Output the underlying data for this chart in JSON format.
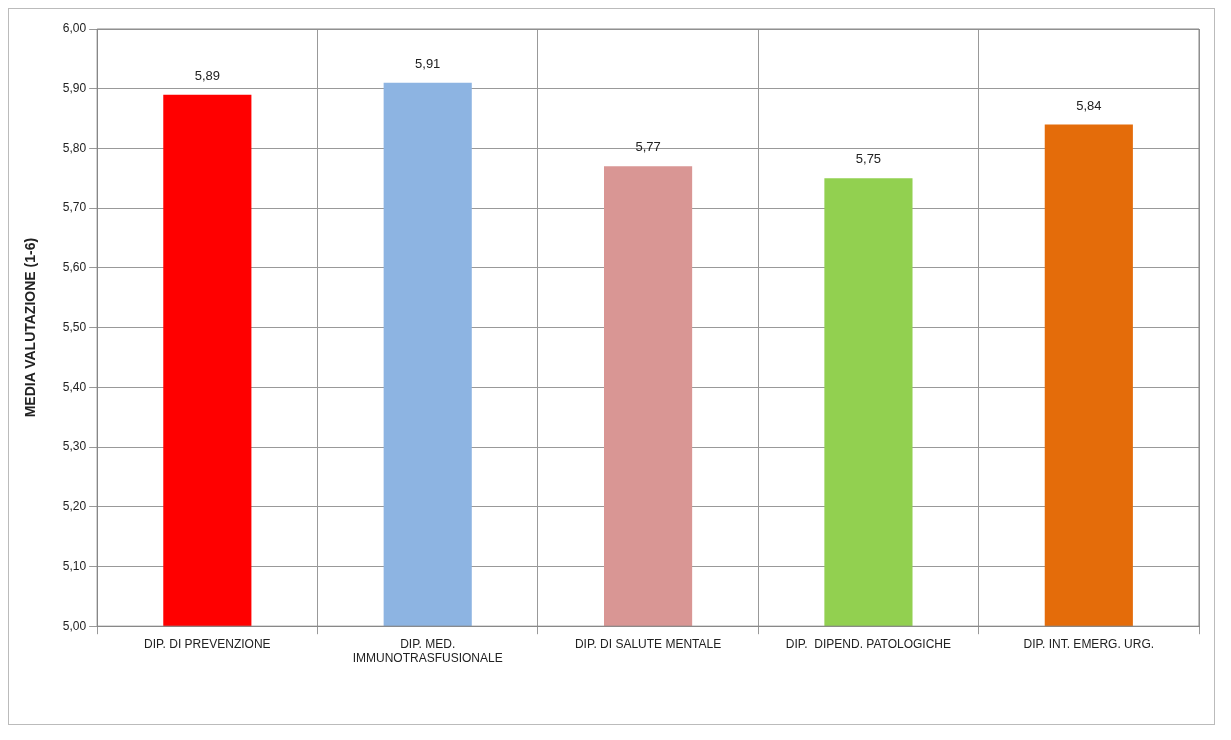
{
  "chart_data": {
    "type": "bar",
    "ylabel": "MEDIA VALUTAZIONE (1-6)",
    "categories": [
      "DIP. DI PREVENZIONE",
      "DIP. MED. IMMUNOTRASFUSIONALE",
      "DIP. DI SALUTE MENTALE",
      "DIP.  DIPEND. PATOLOGICHE",
      "DIP. INT. EMERG. URG."
    ],
    "values": [
      5.89,
      5.91,
      5.77,
      5.75,
      5.84
    ],
    "colors": [
      "#ff0000",
      "#8db4e2",
      "#d99694",
      "#92d050",
      "#e46c0a"
    ],
    "ylim": [
      5,
      6
    ],
    "yticks": [
      {
        "value": 5,
        "label": "5,00"
      },
      {
        "value": 5.1,
        "label": "5,10"
      },
      {
        "value": 5.2,
        "label": "5,20"
      },
      {
        "value": 5.3,
        "label": "5,30"
      },
      {
        "value": 5.4,
        "label": "5,40"
      },
      {
        "value": 5.5,
        "label": "5,50"
      },
      {
        "value": 5.6,
        "label": "5,60"
      },
      {
        "value": 5.7,
        "label": "5,70"
      },
      {
        "value": 5.8,
        "label": "5,80"
      },
      {
        "value": 5.9,
        "label": "5,90"
      },
      {
        "value": 6,
        "label": "6,00"
      }
    ],
    "value_labels": [
      "5,89",
      "5,91",
      "5,77",
      "5,75",
      "5,84"
    ],
    "grid": true,
    "legend": false
  }
}
